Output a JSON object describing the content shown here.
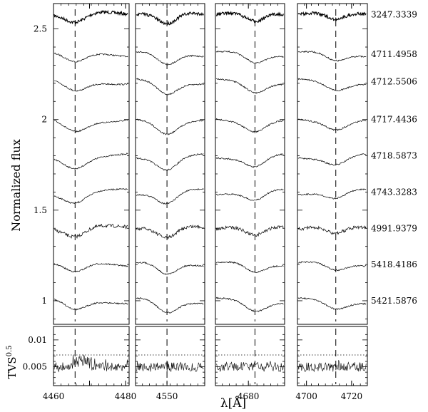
{
  "chart_data": [
    {
      "type": "line",
      "panel": "4460-4480",
      "xlim": [
        4460,
        4481
      ],
      "line_center": 4466,
      "xticks": [
        "4460",
        "4470",
        "4480"
      ],
      "xtick_labels": [
        "4460",
        "",
        "4480"
      ]
    },
    {
      "type": "line",
      "panel": "4540-4560",
      "xlim": [
        4540,
        4562
      ],
      "line_center": 4550,
      "xticks": [
        "4550"
      ],
      "xtick_labels": [
        "4550"
      ]
    },
    {
      "type": "line",
      "panel": "4670-4690",
      "xlim": [
        4670,
        4691
      ],
      "line_center": 4682,
      "xticks": [
        "4680"
      ],
      "xtick_labels": [
        "4680"
      ]
    },
    {
      "type": "line",
      "panel": "4697-4727",
      "xlim": [
        4696,
        4727
      ],
      "line_center": 4713,
      "xticks": [
        "4700",
        "4720"
      ],
      "xtick_labels": [
        "4700",
        "4720"
      ]
    }
  ],
  "spectra": {
    "ylabel": "Normalized flux",
    "ylim": [
      0.87,
      2.64
    ],
    "yticks": [
      1,
      1.5,
      2,
      2.5
    ],
    "ytick_labels": [
      "1",
      "1.5",
      "2",
      "2.5"
    ],
    "offsets": [
      2.58,
      2.36,
      2.21,
      2.0,
      1.8,
      1.6,
      1.4,
      1.2,
      1.0
    ],
    "epochs": [
      "3247.3339",
      "4711.4958",
      "4712.5506",
      "4717.4436",
      "4718.5873",
      "4743.3283",
      "4991.9379",
      "5418.4186",
      "5421.5876"
    ]
  },
  "tvs": {
    "ylabel": "TVS",
    "ylabel_exp": "0.5",
    "ylim": [
      0.0015,
      0.0125
    ],
    "yticks": [
      0.005,
      0.01
    ],
    "ytick_labels": [
      "0.005",
      "0.01"
    ],
    "threshold": 0.0072
  },
  "xlabel": "λ[Å]"
}
